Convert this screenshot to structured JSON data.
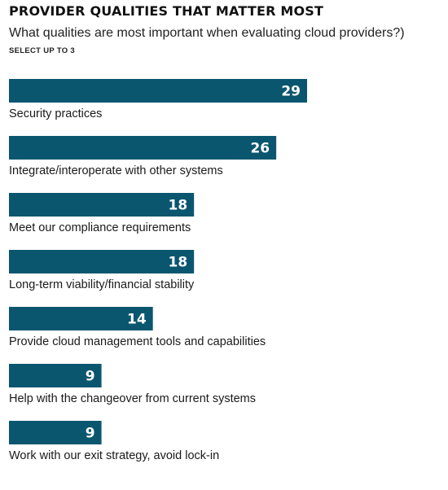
{
  "title": "PROVIDER QUALITIES THAT MATTER MOST",
  "subtitle": "What qualities are most important when evaluating cloud providers?)",
  "note": "SELECT UP TO 3",
  "colors": {
    "bar": "#0a566f",
    "bar_label": "#ffffff",
    "category_label": "#1a1a1a"
  },
  "chart_data": {
    "type": "bar",
    "orientation": "horizontal",
    "categories": [
      "Security practices",
      "Integrate/interoperate with other systems",
      "Meet our compliance requirements",
      "Long-term viability/financial stability",
      "Provide cloud management tools and capabilities",
      "Help with the changeover from current systems",
      "Work with our exit strategy, avoid lock-in"
    ],
    "values": [
      29,
      26,
      18,
      18,
      14,
      9,
      9
    ],
    "data_labels": [
      "29",
      "26",
      "18",
      "18",
      "14",
      "9",
      "9"
    ],
    "grid": false,
    "legend": "none"
  }
}
